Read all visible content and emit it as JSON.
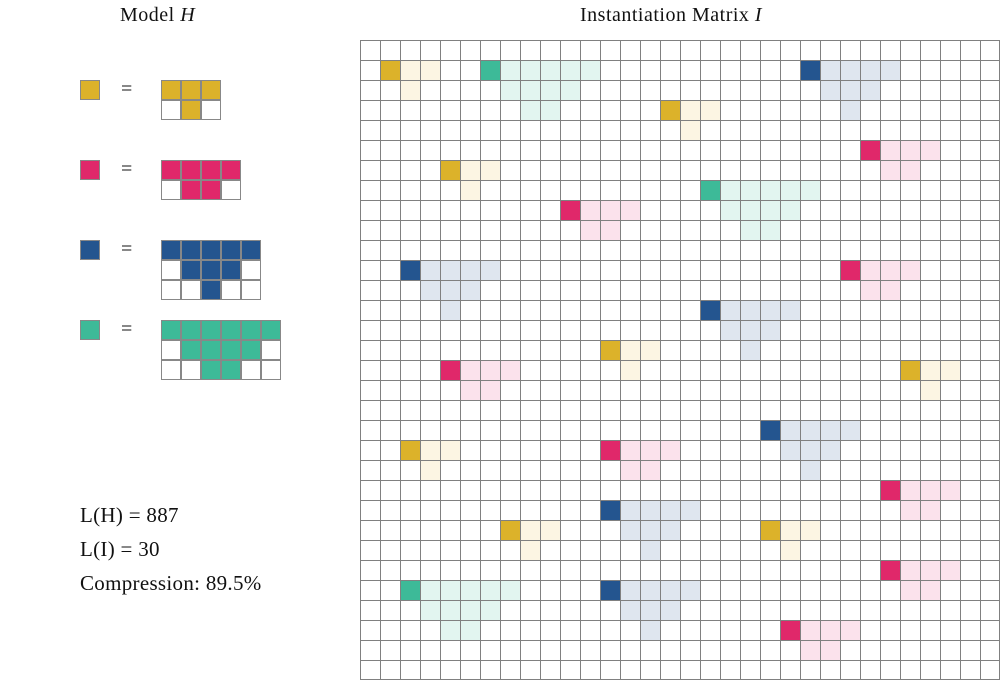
{
  "titles": {
    "model_prefix": "Model ",
    "model_symbol": "H",
    "matrix_prefix": "Instantiation Matrix ",
    "matrix_symbol": "I"
  },
  "colors": {
    "yellow": "#dcb22a",
    "pink": "#e0286a",
    "blue": "#24558f",
    "teal": "#3dba98",
    "yellow_light": "#fcf5e3",
    "pink_light": "#fbe2ec",
    "blue_light": "#dfe6ef",
    "teal_light": "#e2f5f0"
  },
  "model": {
    "equals": "=",
    "patterns": [
      {
        "color": "yellow",
        "rows": [
          "111",
          "010"
        ]
      },
      {
        "color": "pink",
        "rows": [
          "1111",
          "0110"
        ]
      },
      {
        "color": "blue",
        "rows": [
          "11111",
          "01110",
          "00100"
        ]
      },
      {
        "color": "teal",
        "rows": [
          "111111",
          "011110",
          "001100"
        ]
      }
    ]
  },
  "stats": {
    "lh": "L(H) = 887",
    "li": "L(I) = 30",
    "compression": "Compression: 89.5%"
  },
  "matrix": {
    "size": 32,
    "instances": [
      {
        "p": 0,
        "r": 1,
        "c": 1
      },
      {
        "p": 3,
        "r": 1,
        "c": 6
      },
      {
        "p": 2,
        "r": 1,
        "c": 22
      },
      {
        "p": 0,
        "r": 3,
        "c": 15
      },
      {
        "p": 1,
        "r": 5,
        "c": 25
      },
      {
        "p": 0,
        "r": 6,
        "c": 4
      },
      {
        "p": 3,
        "r": 7,
        "c": 17
      },
      {
        "p": 1,
        "r": 8,
        "c": 10
      },
      {
        "p": 2,
        "r": 11,
        "c": 2
      },
      {
        "p": 1,
        "r": 11,
        "c": 24
      },
      {
        "p": 2,
        "r": 13,
        "c": 17
      },
      {
        "p": 0,
        "r": 15,
        "c": 12
      },
      {
        "p": 1,
        "r": 16,
        "c": 4
      },
      {
        "p": 0,
        "r": 16,
        "c": 27
      },
      {
        "p": 2,
        "r": 19,
        "c": 20
      },
      {
        "p": 0,
        "r": 20,
        "c": 2
      },
      {
        "p": 1,
        "r": 20,
        "c": 12
      },
      {
        "p": 1,
        "r": 22,
        "c": 26
      },
      {
        "p": 2,
        "r": 23,
        "c": 12
      },
      {
        "p": 0,
        "r": 24,
        "c": 7
      },
      {
        "p": 0,
        "r": 24,
        "c": 20
      },
      {
        "p": 1,
        "r": 26,
        "c": 26
      },
      {
        "p": 3,
        "r": 27,
        "c": 2
      },
      {
        "p": 2,
        "r": 27,
        "c": 12
      },
      {
        "p": 1,
        "r": 29,
        "c": 21
      }
    ]
  }
}
